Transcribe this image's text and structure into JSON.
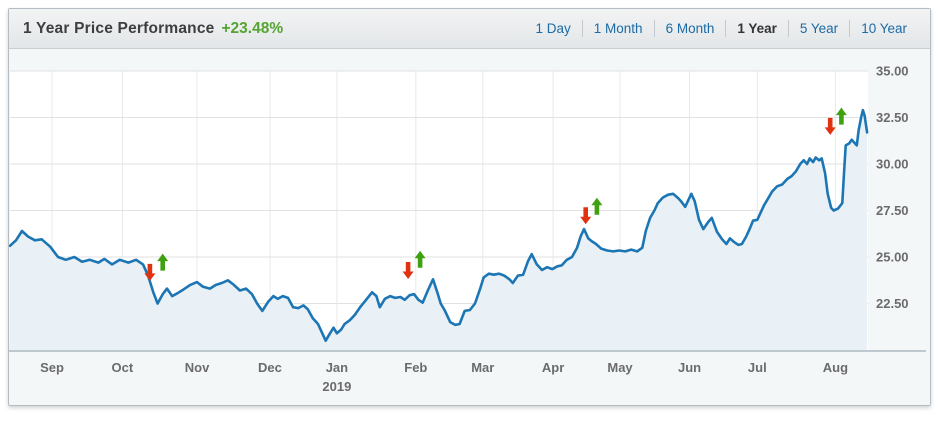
{
  "header": {
    "title": "1 Year Price Performance",
    "change": "+23.48%"
  },
  "tabs": [
    {
      "label": "1 Day",
      "active": false
    },
    {
      "label": "1 Month",
      "active": false
    },
    {
      "label": "6 Month",
      "active": false
    },
    {
      "label": "1 Year",
      "active": true
    },
    {
      "label": "5 Year",
      "active": false
    },
    {
      "label": "10 Year",
      "active": false
    }
  ],
  "colors": {
    "line": "#1d76b4",
    "fill": "#e9f0f6",
    "up_arrow": "#3fa110",
    "down_arrow": "#e03210",
    "hgrid": "#e2e2e2",
    "vgrid": "#e6eaec",
    "axis": "#bdc9cf",
    "plot_bg": "#ffffff",
    "gutter_bg": "#f4f7f8",
    "label": "#6b6b6b",
    "accent_green": "#55a331",
    "tab_link": "#1b6ba5",
    "tab_active": "#333333"
  },
  "chart_data": {
    "type": "area",
    "title": "1 Year Price Performance",
    "change_label": "+23.48%",
    "xlabel": "",
    "ylabel": "",
    "ylim": [
      20,
      35
    ],
    "grid": true,
    "legend": "none",
    "y_ticks": [
      {
        "label": "35.00",
        "value": 35
      },
      {
        "label": "32.50",
        "value": 32.5
      },
      {
        "label": "30.00",
        "value": 30
      },
      {
        "label": "27.50",
        "value": 27.5
      },
      {
        "label": "25.00",
        "value": 25
      },
      {
        "label": "22.50",
        "value": 22.5
      }
    ],
    "x_ticks": [
      {
        "label": "Sep",
        "x": 0.049
      },
      {
        "label": "Oct",
        "x": 0.131
      },
      {
        "label": "Nov",
        "x": 0.218
      },
      {
        "label": "Dec",
        "x": 0.303
      },
      {
        "label": "Jan",
        "x": 0.381,
        "sub": "2019"
      },
      {
        "label": "Feb",
        "x": 0.473
      },
      {
        "label": "Mar",
        "x": 0.551
      },
      {
        "label": "Apr",
        "x": 0.633
      },
      {
        "label": "May",
        "x": 0.711
      },
      {
        "label": "Jun",
        "x": 0.792
      },
      {
        "label": "Jul",
        "x": 0.871
      },
      {
        "label": "Aug",
        "x": 0.962
      }
    ],
    "series": [
      {
        "name": "price",
        "points": [
          [
            0.0,
            25.6
          ],
          [
            0.007,
            25.9
          ],
          [
            0.014,
            26.4
          ],
          [
            0.021,
            26.1
          ],
          [
            0.029,
            25.9
          ],
          [
            0.037,
            25.95
          ],
          [
            0.047,
            25.55
          ],
          [
            0.056,
            25.0
          ],
          [
            0.065,
            24.85
          ],
          [
            0.075,
            25.0
          ],
          [
            0.084,
            24.75
          ],
          [
            0.093,
            24.85
          ],
          [
            0.103,
            24.7
          ],
          [
            0.11,
            24.9
          ],
          [
            0.119,
            24.6
          ],
          [
            0.128,
            24.85
          ],
          [
            0.138,
            24.7
          ],
          [
            0.147,
            24.85
          ],
          [
            0.155,
            24.6
          ],
          [
            0.161,
            24.0
          ],
          [
            0.167,
            23.1
          ],
          [
            0.172,
            22.5
          ],
          [
            0.178,
            23.0
          ],
          [
            0.183,
            23.3
          ],
          [
            0.189,
            22.9
          ],
          [
            0.195,
            23.05
          ],
          [
            0.202,
            23.25
          ],
          [
            0.21,
            23.5
          ],
          [
            0.218,
            23.65
          ],
          [
            0.225,
            23.4
          ],
          [
            0.233,
            23.3
          ],
          [
            0.24,
            23.5
          ],
          [
            0.247,
            23.6
          ],
          [
            0.254,
            23.75
          ],
          [
            0.261,
            23.5
          ],
          [
            0.268,
            23.2
          ],
          [
            0.275,
            23.3
          ],
          [
            0.282,
            23.0
          ],
          [
            0.288,
            22.5
          ],
          [
            0.294,
            22.1
          ],
          [
            0.301,
            22.6
          ],
          [
            0.307,
            22.9
          ],
          [
            0.312,
            22.75
          ],
          [
            0.318,
            22.9
          ],
          [
            0.324,
            22.8
          ],
          [
            0.33,
            22.3
          ],
          [
            0.336,
            22.25
          ],
          [
            0.342,
            22.4
          ],
          [
            0.347,
            22.2
          ],
          [
            0.353,
            21.7
          ],
          [
            0.359,
            21.4
          ],
          [
            0.364,
            20.9
          ],
          [
            0.368,
            20.5
          ],
          [
            0.373,
            20.9
          ],
          [
            0.377,
            21.2
          ],
          [
            0.381,
            20.9
          ],
          [
            0.386,
            21.1
          ],
          [
            0.39,
            21.4
          ],
          [
            0.396,
            21.6
          ],
          [
            0.402,
            21.9
          ],
          [
            0.408,
            22.3
          ],
          [
            0.415,
            22.7
          ],
          [
            0.422,
            23.1
          ],
          [
            0.427,
            22.9
          ],
          [
            0.431,
            22.3
          ],
          [
            0.437,
            22.75
          ],
          [
            0.443,
            22.9
          ],
          [
            0.449,
            22.8
          ],
          [
            0.455,
            22.85
          ],
          [
            0.46,
            22.7
          ],
          [
            0.466,
            22.95
          ],
          [
            0.471,
            23.0
          ],
          [
            0.476,
            22.7
          ],
          [
            0.481,
            22.55
          ],
          [
            0.487,
            23.2
          ],
          [
            0.493,
            23.8
          ],
          [
            0.498,
            23.1
          ],
          [
            0.502,
            22.5
          ],
          [
            0.507,
            22.1
          ],
          [
            0.513,
            21.5
          ],
          [
            0.519,
            21.35
          ],
          [
            0.524,
            21.4
          ],
          [
            0.53,
            22.1
          ],
          [
            0.536,
            22.15
          ],
          [
            0.542,
            22.5
          ],
          [
            0.548,
            23.3
          ],
          [
            0.552,
            23.9
          ],
          [
            0.558,
            24.1
          ],
          [
            0.564,
            24.05
          ],
          [
            0.57,
            24.1
          ],
          [
            0.576,
            24.0
          ],
          [
            0.582,
            23.8
          ],
          [
            0.586,
            23.6
          ],
          [
            0.592,
            24.0
          ],
          [
            0.598,
            24.05
          ],
          [
            0.604,
            24.8
          ],
          [
            0.608,
            25.15
          ],
          [
            0.614,
            24.6
          ],
          [
            0.62,
            24.3
          ],
          [
            0.626,
            24.45
          ],
          [
            0.632,
            24.35
          ],
          [
            0.638,
            24.5
          ],
          [
            0.643,
            24.55
          ],
          [
            0.649,
            24.85
          ],
          [
            0.655,
            25.0
          ],
          [
            0.661,
            25.5
          ],
          [
            0.665,
            26.1
          ],
          [
            0.669,
            26.5
          ],
          [
            0.674,
            26.0
          ],
          [
            0.678,
            25.85
          ],
          [
            0.683,
            25.7
          ],
          [
            0.689,
            25.45
          ],
          [
            0.696,
            25.35
          ],
          [
            0.703,
            25.3
          ],
          [
            0.71,
            25.35
          ],
          [
            0.717,
            25.3
          ],
          [
            0.724,
            25.4
          ],
          [
            0.731,
            25.3
          ],
          [
            0.737,
            25.5
          ],
          [
            0.741,
            26.4
          ],
          [
            0.746,
            27.1
          ],
          [
            0.751,
            27.5
          ],
          [
            0.755,
            27.9
          ],
          [
            0.761,
            28.2
          ],
          [
            0.767,
            28.35
          ],
          [
            0.773,
            28.4
          ],
          [
            0.779,
            28.15
          ],
          [
            0.782,
            28.0
          ],
          [
            0.787,
            27.7
          ],
          [
            0.794,
            28.4
          ],
          [
            0.798,
            28.0
          ],
          [
            0.803,
            27.0
          ],
          [
            0.808,
            26.5
          ],
          [
            0.814,
            26.9
          ],
          [
            0.818,
            27.1
          ],
          [
            0.824,
            26.35
          ],
          [
            0.83,
            25.95
          ],
          [
            0.835,
            25.7
          ],
          [
            0.839,
            26.0
          ],
          [
            0.844,
            25.8
          ],
          [
            0.849,
            25.65
          ],
          [
            0.853,
            25.7
          ],
          [
            0.858,
            26.1
          ],
          [
            0.862,
            26.5
          ],
          [
            0.866,
            26.95
          ],
          [
            0.871,
            27.0
          ],
          [
            0.874,
            27.3
          ],
          [
            0.879,
            27.8
          ],
          [
            0.883,
            28.1
          ],
          [
            0.888,
            28.5
          ],
          [
            0.894,
            28.8
          ],
          [
            0.9,
            28.9
          ],
          [
            0.906,
            29.2
          ],
          [
            0.911,
            29.35
          ],
          [
            0.916,
            29.6
          ],
          [
            0.921,
            30.0
          ],
          [
            0.925,
            30.2
          ],
          [
            0.929,
            30.0
          ],
          [
            0.932,
            30.3
          ],
          [
            0.936,
            30.1
          ],
          [
            0.939,
            30.35
          ],
          [
            0.943,
            30.2
          ],
          [
            0.946,
            30.3
          ],
          [
            0.95,
            29.5
          ],
          [
            0.953,
            28.4
          ],
          [
            0.957,
            27.65
          ],
          [
            0.96,
            27.5
          ],
          [
            0.965,
            27.6
          ],
          [
            0.97,
            27.9
          ],
          [
            0.972,
            29.5
          ],
          [
            0.974,
            31.0
          ],
          [
            0.978,
            31.1
          ],
          [
            0.981,
            31.3
          ],
          [
            0.985,
            31.1
          ],
          [
            0.987,
            31.0
          ],
          [
            0.989,
            31.8
          ],
          [
            0.992,
            32.5
          ],
          [
            0.994,
            32.9
          ],
          [
            0.996,
            32.6
          ],
          [
            0.999,
            31.7
          ]
        ]
      }
    ],
    "markers": [
      {
        "x": 0.163,
        "value": 24.2,
        "dir": "down"
      },
      {
        "x": 0.178,
        "value": 24.7,
        "dir": "up"
      },
      {
        "x": 0.464,
        "value": 24.3,
        "dir": "down"
      },
      {
        "x": 0.478,
        "value": 24.85,
        "dir": "up"
      },
      {
        "x": 0.671,
        "value": 27.25,
        "dir": "down"
      },
      {
        "x": 0.684,
        "value": 27.7,
        "dir": "up"
      },
      {
        "x": 0.956,
        "value": 32.05,
        "dir": "down"
      },
      {
        "x": 0.969,
        "value": 32.55,
        "dir": "up"
      }
    ]
  }
}
